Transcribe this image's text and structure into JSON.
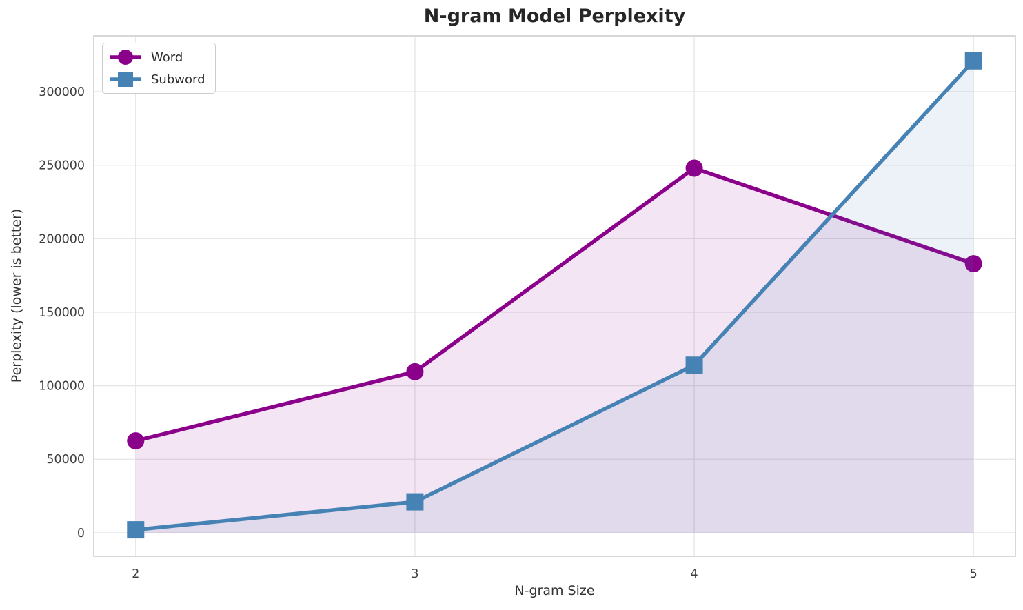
{
  "chart_data": {
    "type": "line",
    "title": "N-gram Model Perplexity",
    "xlabel": "N-gram Size",
    "ylabel": "Perplexity (lower is better)",
    "x": [
      2,
      3,
      4,
      5
    ],
    "series": [
      {
        "name": "Word",
        "marker": "circle",
        "color": "#8B008B",
        "fill_opacity": 0.1,
        "values": [
          62500,
          109500,
          248000,
          183000
        ]
      },
      {
        "name": "Subword",
        "marker": "square",
        "color": "#4682B4",
        "fill_opacity": 0.1,
        "values": [
          2000,
          21000,
          114000,
          321000
        ]
      }
    ],
    "fill_baseline": 0,
    "xticks": [
      2,
      3,
      4,
      5
    ],
    "yticks": [
      0,
      50000,
      100000,
      150000,
      200000,
      250000,
      300000
    ],
    "xlim": [
      1.85,
      5.15
    ],
    "ylim": [
      -16000,
      338000
    ],
    "grid": true,
    "legend_position": "upper left"
  },
  "colors": {
    "background": "#ffffff",
    "grid": "#e5e5e5",
    "spine": "#cccccc",
    "title_text": "#262626",
    "tick_text": "#3d3d3d",
    "axis_label_text": "#333333"
  }
}
